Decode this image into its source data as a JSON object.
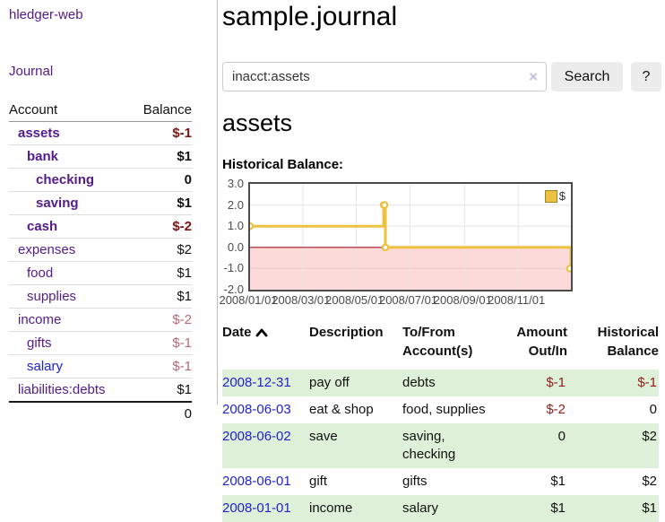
{
  "app": {
    "brand": "hledger-web"
  },
  "sidebar": {
    "journal_label": "Journal",
    "accounts": {
      "header_account": "Account",
      "header_balance": "Balance",
      "rows": [
        {
          "name": "assets",
          "balance": "$-1",
          "indent": 1,
          "bold": true,
          "neg": "strong",
          "link": "purple"
        },
        {
          "name": "bank",
          "balance": "$1",
          "indent": 2,
          "bold": true,
          "neg": "",
          "link": "purple"
        },
        {
          "name": "checking",
          "balance": "0",
          "indent": 3,
          "bold": true,
          "neg": "",
          "link": "purple"
        },
        {
          "name": "saving",
          "balance": "$1",
          "indent": 3,
          "bold": true,
          "neg": "",
          "link": "purple"
        },
        {
          "name": "cash",
          "balance": "$-2",
          "indent": 2,
          "bold": true,
          "neg": "strong",
          "link": "purple"
        },
        {
          "name": "expenses",
          "balance": "$2",
          "indent": 1,
          "bold": false,
          "neg": "",
          "link": "purple"
        },
        {
          "name": "food",
          "balance": "$1",
          "indent": 2,
          "bold": false,
          "neg": "",
          "link": "purple"
        },
        {
          "name": "supplies",
          "balance": "$1",
          "indent": 2,
          "bold": false,
          "neg": "",
          "link": "purple"
        },
        {
          "name": "income",
          "balance": "$-2",
          "indent": 1,
          "bold": false,
          "neg": "soft",
          "link": "purple"
        },
        {
          "name": "gifts",
          "balance": "$-1",
          "indent": 2,
          "bold": false,
          "neg": "soft",
          "link": "purple"
        },
        {
          "name": "salary",
          "balance": "$-1",
          "indent": 2,
          "bold": false,
          "neg": "soft",
          "link": "blue"
        },
        {
          "name": "liabilities:debts",
          "balance": "$1",
          "indent": 1,
          "bold": false,
          "neg": "",
          "link": "purple"
        }
      ],
      "total": "0"
    }
  },
  "main": {
    "title": "sample.journal",
    "search": {
      "value": "inacct:assets",
      "clear": "×",
      "button_label": "Search",
      "help_label": "?"
    },
    "heading": "assets",
    "chart_title": "Historical Balance:"
  },
  "chart_data": {
    "type": "line",
    "step": true,
    "title": "Historical Balance",
    "legend_position": "top-right",
    "legend": [
      {
        "label": "$",
        "color": "#edc240"
      }
    ],
    "x_start": "2008-01-01",
    "x_end": "2008-12-31",
    "x": [
      "2008-01-01",
      "2008-06-01",
      "2008-06-02",
      "2008-06-03",
      "2008-12-31"
    ],
    "series": [
      {
        "name": "$",
        "color": "#edc240",
        "values": [
          1,
          2,
          2,
          0,
          -1
        ]
      }
    ],
    "ylim": [
      -2,
      3
    ],
    "yticks": [
      "3.0",
      "2.0",
      "1.0",
      "0.0",
      "-1.0",
      "-2.0"
    ],
    "xticks": [
      "2008/01/01",
      "2008/03/01",
      "2008/05/01",
      "2008/07/01",
      "2008/09/01",
      "2008/11/01"
    ],
    "grid": true,
    "negative_fill": "#fcdada",
    "zero_line_color": "#a51623",
    "grid_color": "#e5e5e5"
  },
  "register": {
    "headers": {
      "date": "Date",
      "description": "Description",
      "accounts": "To/From Account(s)",
      "amount": "Amount Out/In",
      "balance": "Historical Balance"
    },
    "rows": [
      {
        "date": "2008-12-31",
        "description": "pay off",
        "accounts": "debts",
        "amount": "$-1",
        "balance": "$-1",
        "amount_neg": true,
        "balance_neg": true
      },
      {
        "date": "2008-06-03",
        "description": "eat & shop",
        "accounts": "food, supplies",
        "amount": "$-2",
        "balance": "0",
        "amount_neg": true,
        "balance_neg": false
      },
      {
        "date": "2008-06-02",
        "description": "save",
        "accounts": "saving, checking",
        "amount": "0",
        "balance": "$2",
        "amount_neg": false,
        "balance_neg": false
      },
      {
        "date": "2008-06-01",
        "description": "gift",
        "accounts": "gifts",
        "amount": "$1",
        "balance": "$2",
        "amount_neg": false,
        "balance_neg": false
      },
      {
        "date": "2008-01-01",
        "description": "income",
        "accounts": "salary",
        "amount": "$1",
        "balance": "$1",
        "amount_neg": false,
        "balance_neg": false
      }
    ]
  }
}
